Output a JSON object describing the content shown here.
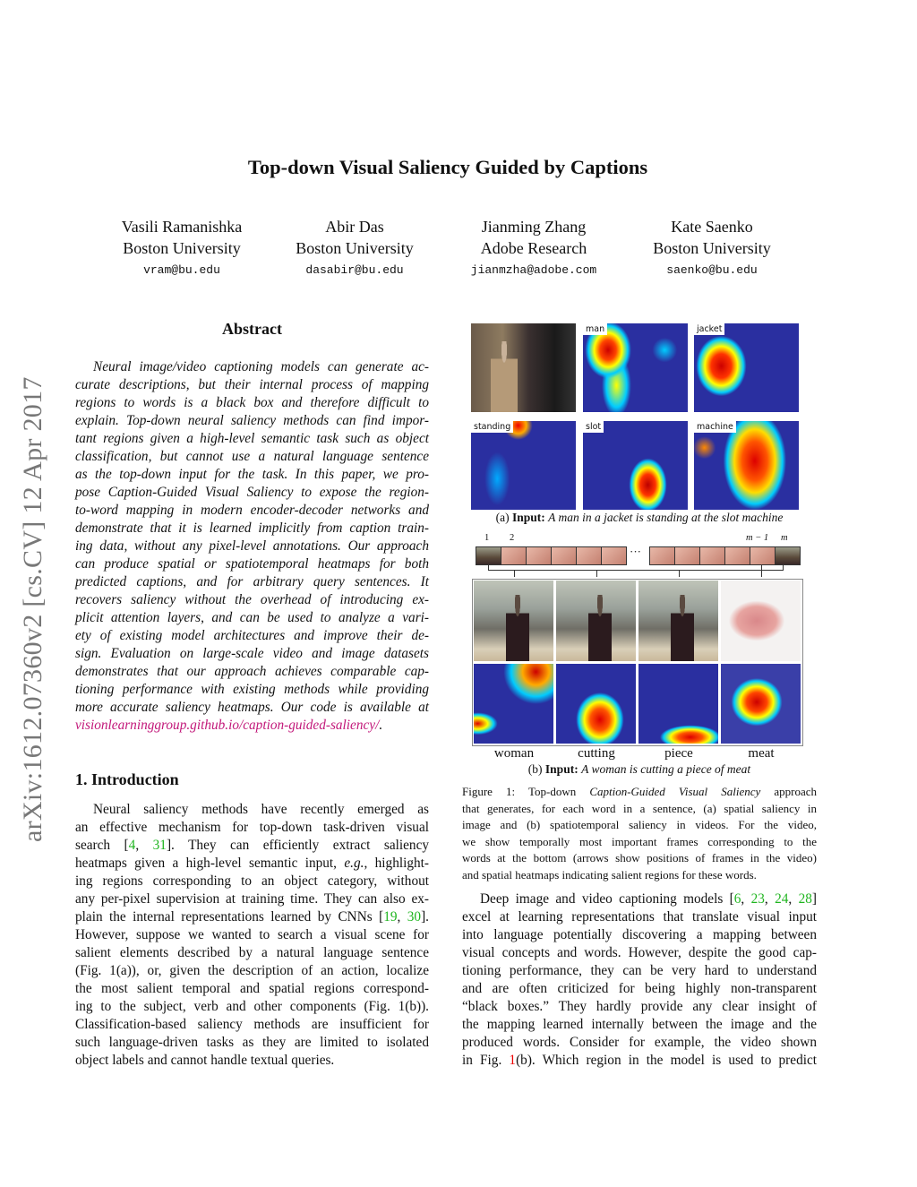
{
  "sidebar_stamp": "arXiv:1612.07360v2  [cs.CV]  12 Apr 2017",
  "title": "Top-down Visual Saliency Guided by Captions",
  "authors": [
    {
      "name": "Vasili Ramanishka",
      "affiliation": "Boston University",
      "email": "vram@bu.edu"
    },
    {
      "name": "Abir Das",
      "affiliation": "Boston University",
      "email": "dasabir@bu.edu"
    },
    {
      "name": "Jianming Zhang",
      "affiliation": "Adobe Research",
      "email": "jianmzha@adobe.com"
    },
    {
      "name": "Kate Saenko",
      "affiliation": "Boston University",
      "email": "saenko@bu.edu"
    }
  ],
  "abstract": {
    "heading": "Abstract",
    "lines": [
      "Neural image/video captioning models can generate ac-",
      "curate descriptions, but their internal process of mapping",
      "regions to words is a black box and therefore difficult to",
      "explain. Top-down neural saliency methods can find impor-",
      "tant regions given a high-level semantic task such as object",
      "classification, but cannot use a natural language sentence",
      "as the top-down input for the task. In this paper, we pro-",
      "pose Caption-Guided Visual Saliency to expose the region-",
      "to-word mapping in modern encoder-decoder networks and",
      "demonstrate that it is learned implicitly from caption train-",
      "ing data, without any pixel-level annotations. Our approach",
      "can produce spatial or spatiotemporal heatmaps for both",
      "predicted captions, and for arbitrary query sentences. It",
      "recovers saliency without the overhead of introducing ex-",
      "plicit attention layers, and can be used to analyze a vari-",
      "ety of existing model architectures and improve their de-",
      "sign. Evaluation on large-scale video and image datasets",
      "demonstrates that our approach achieves comparable cap-",
      "tioning performance with existing methods while providing",
      "more accurate saliency heatmaps. Our code is available at",
      "{l:visionlearninggroup.github.io/caption-guided-saliency/}."
    ]
  },
  "introduction": {
    "heading": "1. Introduction",
    "lines": [
      "Neural saliency methods have recently emerged as",
      "an effective mechanism for top-down task-driven visual",
      "search [{g:4}, {g:31}]. They can efficiently extract saliency",
      "heatmaps given a high-level semantic input, {i:e.g.}, highlight-",
      "ing regions corresponding to an object category, without",
      "any per-pixel supervision at training time. They can also ex-",
      "plain the internal representations learned by CNNs [{g:19}, {g:30}].",
      "However, suppose we wanted to search a visual scene for",
      "salient elements described by a natural language sentence",
      "(Fig. 1(a)), or, given the description of an action, localize",
      "the most salient temporal and spatial regions correspond-",
      "ing to the subject, verb and other components (Fig. 1(b)).",
      "Classification-based saliency methods are insufficient for",
      "such language-driven tasks as they are limited to isolated",
      "object labels and cannot handle textual queries."
    ]
  },
  "figure": {
    "panel_a_labels": [
      "man",
      "jacket",
      "standing",
      "slot",
      "machine"
    ],
    "panel_a_caption_prefix": "(a) ",
    "panel_a_caption_bold": "Input:",
    "panel_a_caption_italic": "A man in a jacket is standing at the slot machine",
    "frame_indices": [
      "1",
      "2",
      "m − 1",
      "m"
    ],
    "ellipsis": "···",
    "panel_b_words": [
      "woman",
      "cutting",
      "piece",
      "meat"
    ],
    "panel_b_caption_prefix": "(b) ",
    "panel_b_caption_bold": "Input:",
    "panel_b_caption_italic": "A woman is cutting a piece of meat",
    "caption_lines": [
      "Figure 1: Top-down {i:Caption-Guided Visual Saliency} approach",
      "that generates, for each word in a sentence, (a) spatial saliency in",
      "image and (b) spatiotemporal saliency in videos. For the video,",
      "we show temporally most important frames corresponding to the",
      "words at the bottom (arrows show positions of frames in the video)",
      "and spatial heatmaps indicating salient regions for these words."
    ]
  },
  "right_paragraph": {
    "lines": [
      "Deep image and video captioning models [{g:6}, {g:23}, {g:24}, {g:28}]",
      "excel at learning representations that translate visual input",
      "into language potentially discovering a mapping between",
      "visual concepts and words. However, despite the good cap-",
      "tioning performance, they can be very hard to understand",
      "and are often criticized for being highly non-transparent",
      "“black boxes.” They hardly provide any clear insight of",
      "the mapping learned internally between the image and the",
      "produced words. Consider for example, the video shown",
      "in Fig. {r:1}(b). Which region in the model is used to predict"
    ]
  },
  "colors": {
    "citation": "#1fb51f",
    "link": "#c2187a",
    "figref": "#e00000",
    "stamp": "#777777"
  }
}
